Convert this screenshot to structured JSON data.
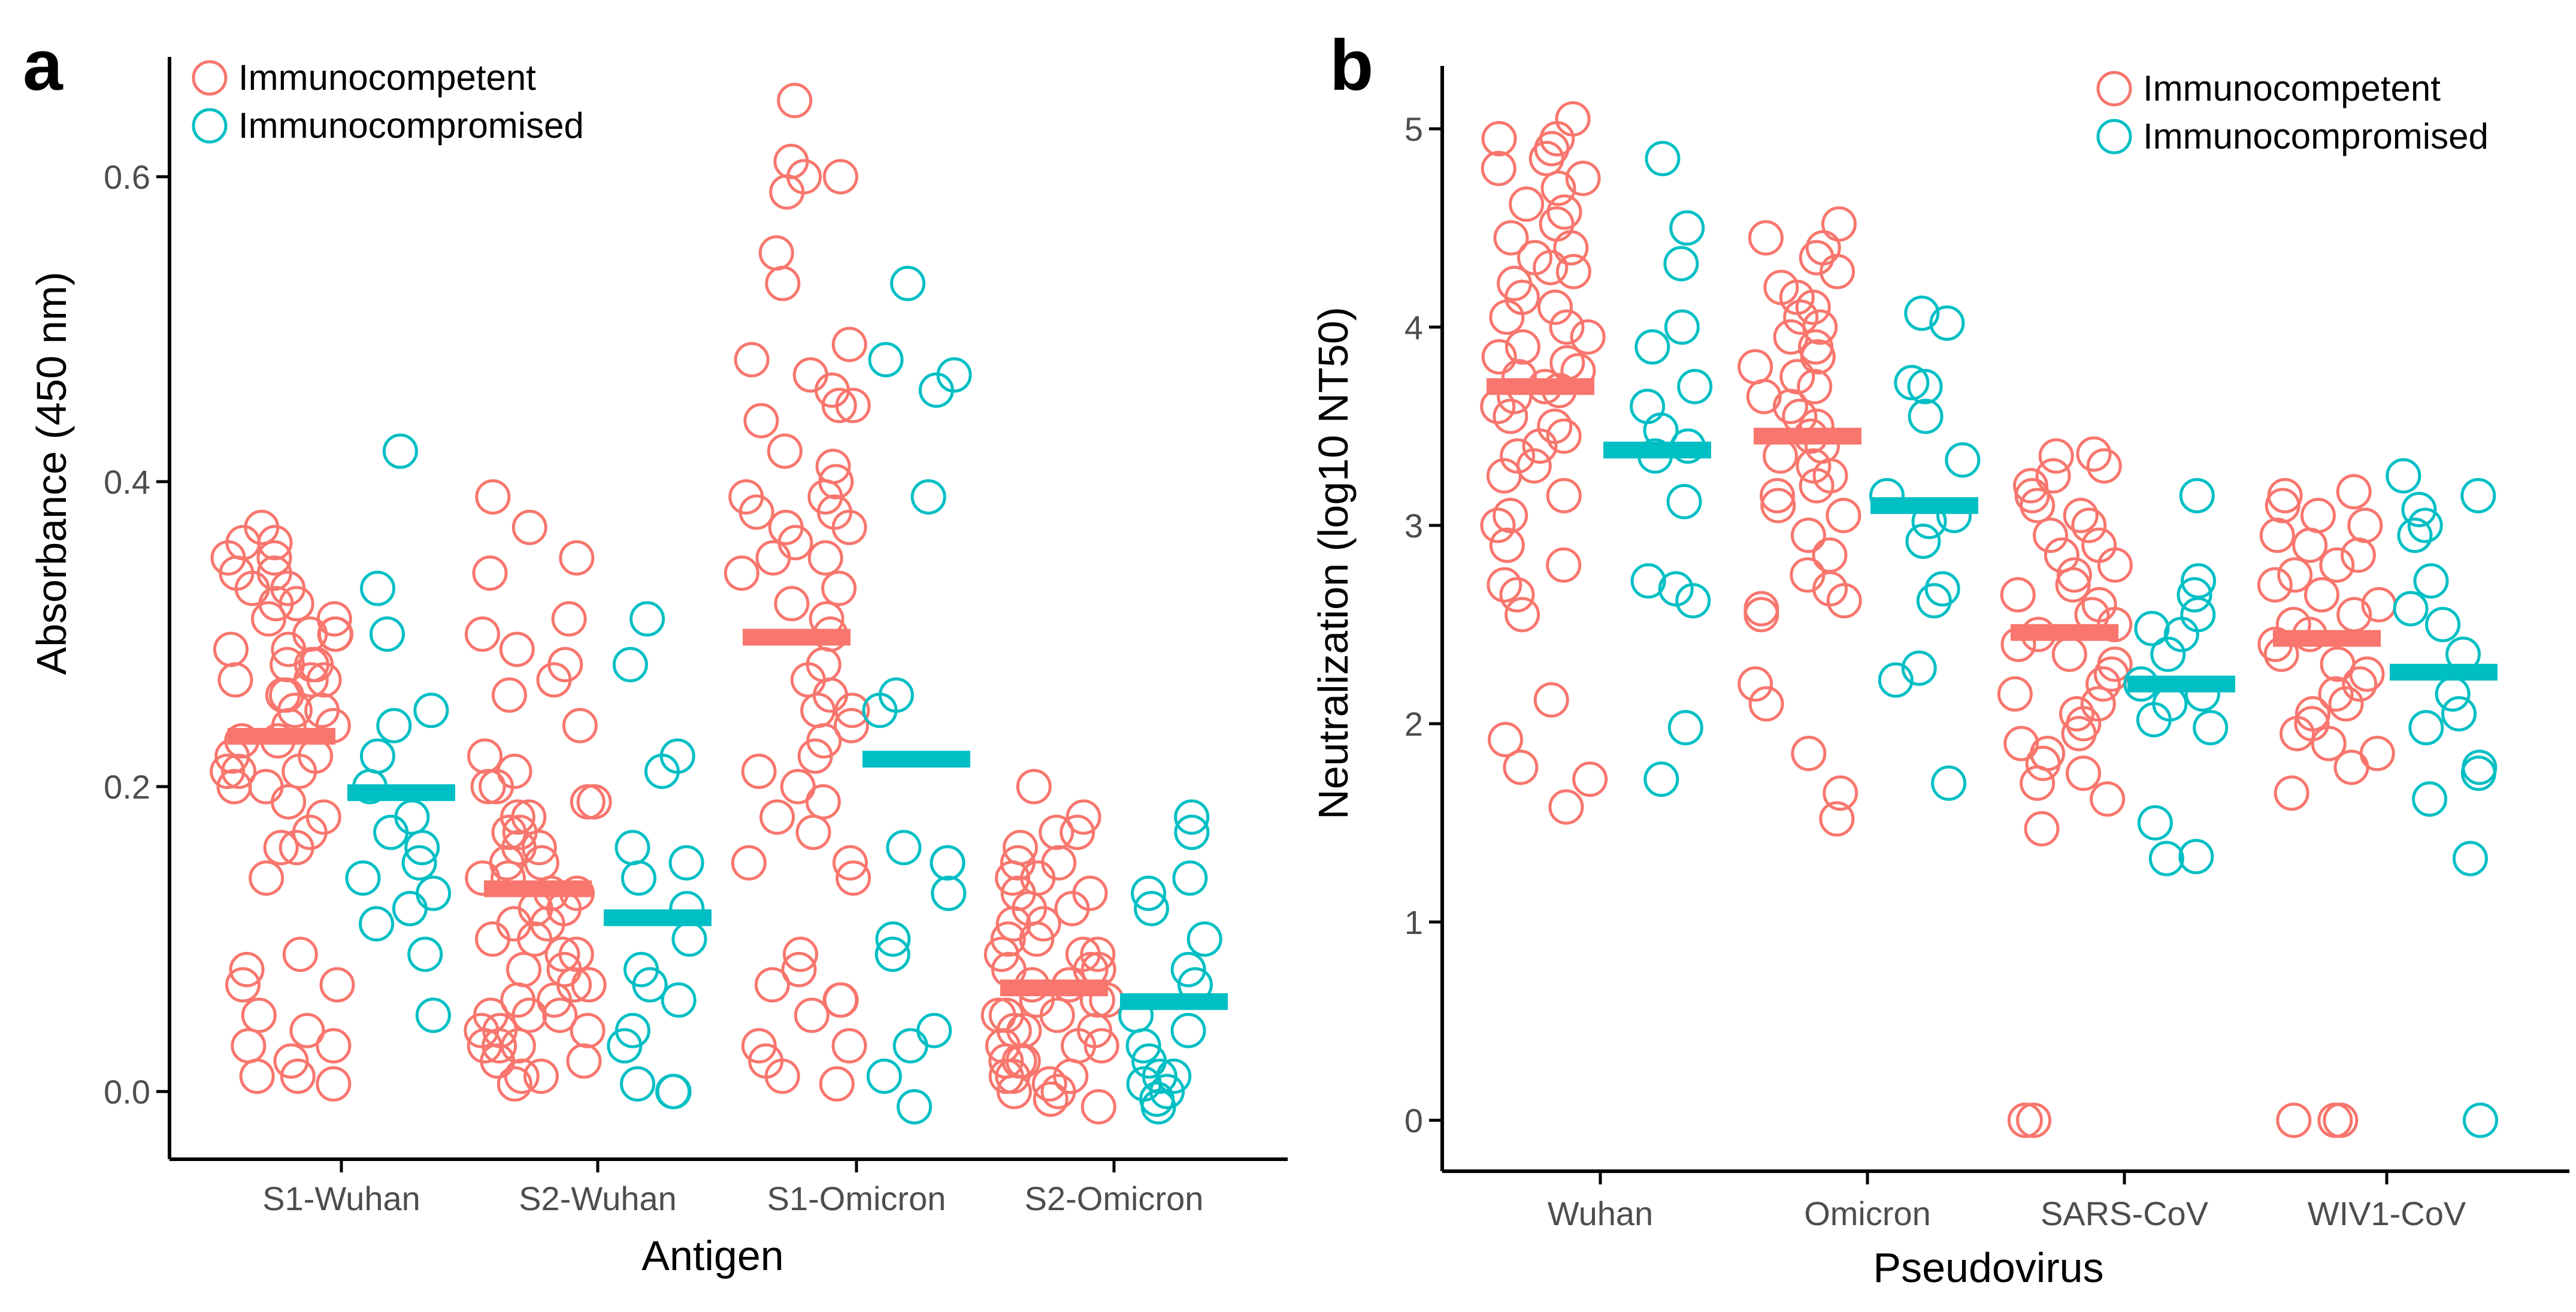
{
  "colors": {
    "immunocompetent": "#F8766D",
    "immunocompromised": "#00BFC4",
    "axis": "#000000",
    "tick_text": "#4D4D4D"
  },
  "chart_data": [
    {
      "panel": "a",
      "type": "scatter",
      "title": "",
      "xlabel": "Antigen",
      "ylabel": "Absorbance (450 nm)",
      "categories": [
        "S1-Wuhan",
        "S2-Wuhan",
        "S1-Omicron",
        "S2-Omicron"
      ],
      "ylim": [
        -0.02,
        0.68
      ],
      "yticks": [
        0.0,
        0.2,
        0.4,
        0.6
      ],
      "ytick_labels": [
        "0.0",
        "0.2",
        "0.4",
        "0.6"
      ],
      "legend": {
        "position": "top-left",
        "entries": [
          "Immunocompetent",
          "Immunocompromised"
        ]
      },
      "series": [
        {
          "name": "Immunocompetent",
          "color": "#F8766D",
          "means": [
            0.233,
            0.133,
            0.298,
            0.068
          ],
          "points": [
            [
              0.37,
              0.36,
              0.36,
              0.35,
              0.35,
              0.34,
              0.34,
              0.33,
              0.33,
              0.32,
              0.32,
              0.31,
              0.31,
              0.3,
              0.3,
              0.3,
              0.29,
              0.29,
              0.28,
              0.28,
              0.28,
              0.27,
              0.27,
              0.27,
              0.26,
              0.26,
              0.25,
              0.25,
              0.24,
              0.24,
              0.23,
              0.23,
              0.22,
              0.22,
              0.21,
              0.21,
              0.21,
              0.2,
              0.2,
              0.19,
              0.18,
              0.17,
              0.16,
              0.16,
              0.14,
              0.09,
              0.08,
              0.07,
              0.07,
              0.05,
              0.04,
              0.03,
              0.03,
              0.02,
              0.01,
              0.01,
              0.005
            ],
            [
              0.39,
              0.37,
              0.35,
              0.34,
              0.31,
              0.3,
              0.29,
              0.28,
              0.27,
              0.26,
              0.24,
              0.22,
              0.21,
              0.2,
              0.2,
              0.19,
              0.19,
              0.18,
              0.18,
              0.17,
              0.17,
              0.16,
              0.16,
              0.15,
              0.15,
              0.14,
              0.14,
              0.13,
              0.13,
              0.12,
              0.12,
              0.11,
              0.11,
              0.1,
              0.1,
              0.09,
              0.09,
              0.08,
              0.08,
              0.07,
              0.07,
              0.06,
              0.06,
              0.05,
              0.05,
              0.05,
              0.04,
              0.04,
              0.04,
              0.03,
              0.03,
              0.03,
              0.02,
              0.02,
              0.01,
              0.01,
              0.005
            ],
            [
              0.65,
              0.61,
              0.6,
              0.6,
              0.59,
              0.55,
              0.53,
              0.49,
              0.48,
              0.47,
              0.46,
              0.45,
              0.45,
              0.44,
              0.42,
              0.41,
              0.4,
              0.39,
              0.39,
              0.38,
              0.38,
              0.37,
              0.37,
              0.36,
              0.35,
              0.35,
              0.34,
              0.33,
              0.32,
              0.31,
              0.3,
              0.28,
              0.27,
              0.26,
              0.25,
              0.25,
              0.24,
              0.23,
              0.22,
              0.21,
              0.2,
              0.19,
              0.18,
              0.17,
              0.15,
              0.15,
              0.14,
              0.09,
              0.08,
              0.07,
              0.06,
              0.06,
              0.05,
              0.03,
              0.03,
              0.02,
              0.01,
              0.005
            ],
            [
              0.2,
              0.18,
              0.17,
              0.17,
              0.16,
              0.15,
              0.15,
              0.14,
              0.14,
              0.13,
              0.13,
              0.12,
              0.12,
              0.11,
              0.11,
              0.1,
              0.1,
              0.09,
              0.09,
              0.09,
              0.08,
              0.08,
              0.08,
              0.07,
              0.07,
              0.07,
              0.06,
              0.06,
              0.06,
              0.05,
              0.05,
              0.05,
              0.04,
              0.04,
              0.04,
              0.03,
              0.03,
              0.03,
              0.02,
              0.02,
              0.02,
              0.01,
              0.01,
              0.01,
              0.005,
              0.0,
              0.0,
              -0.005,
              -0.01
            ]
          ]
        },
        {
          "name": "Immunocompromised",
          "color": "#00BFC4",
          "means": [
            0.196,
            0.114,
            0.218,
            0.059
          ],
          "points": [
            [
              0.42,
              0.33,
              0.3,
              0.25,
              0.24,
              0.22,
              0.2,
              0.18,
              0.17,
              0.16,
              0.15,
              0.14,
              0.13,
              0.12,
              0.11,
              0.09,
              0.05
            ],
            [
              0.31,
              0.28,
              0.22,
              0.21,
              0.16,
              0.15,
              0.14,
              0.12,
              0.1,
              0.08,
              0.07,
              0.06,
              0.04,
              0.03,
              0.005,
              0.0,
              0.0
            ],
            [
              0.53,
              0.48,
              0.47,
              0.46,
              0.39,
              0.26,
              0.25,
              0.16,
              0.15,
              0.15,
              0.13,
              0.1,
              0.09,
              0.04,
              0.03,
              0.01,
              -0.01
            ],
            [
              0.18,
              0.17,
              0.14,
              0.13,
              0.12,
              0.1,
              0.08,
              0.07,
              0.05,
              0.04,
              0.03,
              0.02,
              0.01,
              0.01,
              0.005,
              0.0,
              -0.005,
              -0.01
            ]
          ]
        }
      ]
    },
    {
      "panel": "b",
      "type": "scatter",
      "title": "",
      "xlabel": "Pseudovirus",
      "ylabel": "Neutralization (log10 NT50)",
      "categories": [
        "Wuhan",
        "Omicron",
        "SARS-CoV",
        "WIV1-CoV"
      ],
      "ylim": [
        -0.2,
        5.3
      ],
      "yticks": [
        0,
        1,
        2,
        3,
        4,
        5
      ],
      "ytick_labels": [
        "0",
        "1",
        "2",
        "3",
        "4",
        "5"
      ],
      "legend": {
        "position": "top-right",
        "entries": [
          "Immunocompetent",
          "Immunocompromised"
        ]
      },
      "series": [
        {
          "name": "Immunocompetent",
          "color": "#F8766D",
          "means": [
            3.7,
            3.45,
            2.46,
            2.43
          ],
          "points": [
            [
              5.05,
              4.95,
              4.95,
              4.9,
              4.85,
              4.8,
              4.75,
              4.7,
              4.62,
              4.58,
              4.52,
              4.45,
              4.4,
              4.35,
              4.3,
              4.28,
              4.22,
              4.15,
              4.1,
              4.05,
              4.0,
              3.95,
              3.9,
              3.85,
              3.82,
              3.78,
              3.75,
              3.7,
              3.68,
              3.65,
              3.6,
              3.55,
              3.5,
              3.45,
              3.4,
              3.35,
              3.3,
              3.25,
              3.15,
              3.05,
              3.0,
              2.9,
              2.8,
              2.7,
              2.65,
              2.55,
              2.12,
              1.92,
              1.78,
              1.72,
              1.58
            ],
            [
              4.52,
              4.45,
              4.4,
              4.35,
              4.28,
              4.2,
              4.15,
              4.1,
              4.05,
              4.0,
              3.95,
              3.9,
              3.85,
              3.8,
              3.75,
              3.7,
              3.65,
              3.6,
              3.55,
              3.5,
              3.45,
              3.4,
              3.35,
              3.3,
              3.25,
              3.2,
              3.15,
              3.1,
              3.05,
              2.95,
              2.85,
              2.75,
              2.68,
              2.62,
              2.58,
              2.55,
              2.2,
              2.1,
              1.85,
              1.65,
              1.52
            ],
            [
              3.36,
              3.35,
              3.3,
              3.25,
              3.2,
              3.15,
              3.1,
              3.05,
              3.0,
              2.95,
              2.9,
              2.85,
              2.8,
              2.75,
              2.7,
              2.65,
              2.6,
              2.55,
              2.5,
              2.45,
              2.4,
              2.35,
              2.3,
              2.25,
              2.2,
              2.15,
              2.1,
              2.05,
              2.0,
              1.95,
              1.9,
              1.85,
              1.8,
              1.75,
              1.7,
              1.62,
              1.47,
              0.0,
              0.0
            ],
            [
              3.17,
              3.15,
              3.1,
              3.05,
              3.0,
              2.95,
              2.9,
              2.85,
              2.8,
              2.75,
              2.7,
              2.65,
              2.6,
              2.55,
              2.5,
              2.45,
              2.4,
              2.35,
              2.3,
              2.25,
              2.2,
              2.15,
              2.1,
              2.05,
              2.0,
              1.95,
              1.9,
              1.85,
              1.78,
              1.65,
              0.0,
              0.0,
              0.0
            ]
          ]
        },
        {
          "name": "Immunocompromised",
          "color": "#00BFC4",
          "means": [
            3.38,
            3.1,
            2.2,
            2.26
          ],
          "points": [
            [
              4.85,
              4.5,
              4.32,
              4.0,
              3.9,
              3.7,
              3.6,
              3.48,
              3.4,
              3.35,
              3.12,
              2.72,
              2.68,
              2.62,
              1.98,
              1.72
            ],
            [
              4.07,
              4.02,
              3.72,
              3.7,
              3.55,
              3.33,
              3.15,
              3.05,
              3.02,
              2.92,
              2.68,
              2.62,
              2.28,
              2.22,
              1.7
            ],
            [
              3.15,
              2.72,
              2.65,
              2.55,
              2.48,
              2.45,
              2.35,
              2.2,
              2.15,
              2.1,
              2.02,
              1.98,
              1.5,
              1.33,
              1.32
            ],
            [
              3.25,
              3.15,
              3.08,
              3.0,
              2.95,
              2.72,
              2.58,
              2.5,
              2.35,
              2.15,
              2.05,
              1.98,
              1.78,
              1.75,
              1.62,
              1.32,
              0.0
            ]
          ]
        }
      ]
    }
  ]
}
